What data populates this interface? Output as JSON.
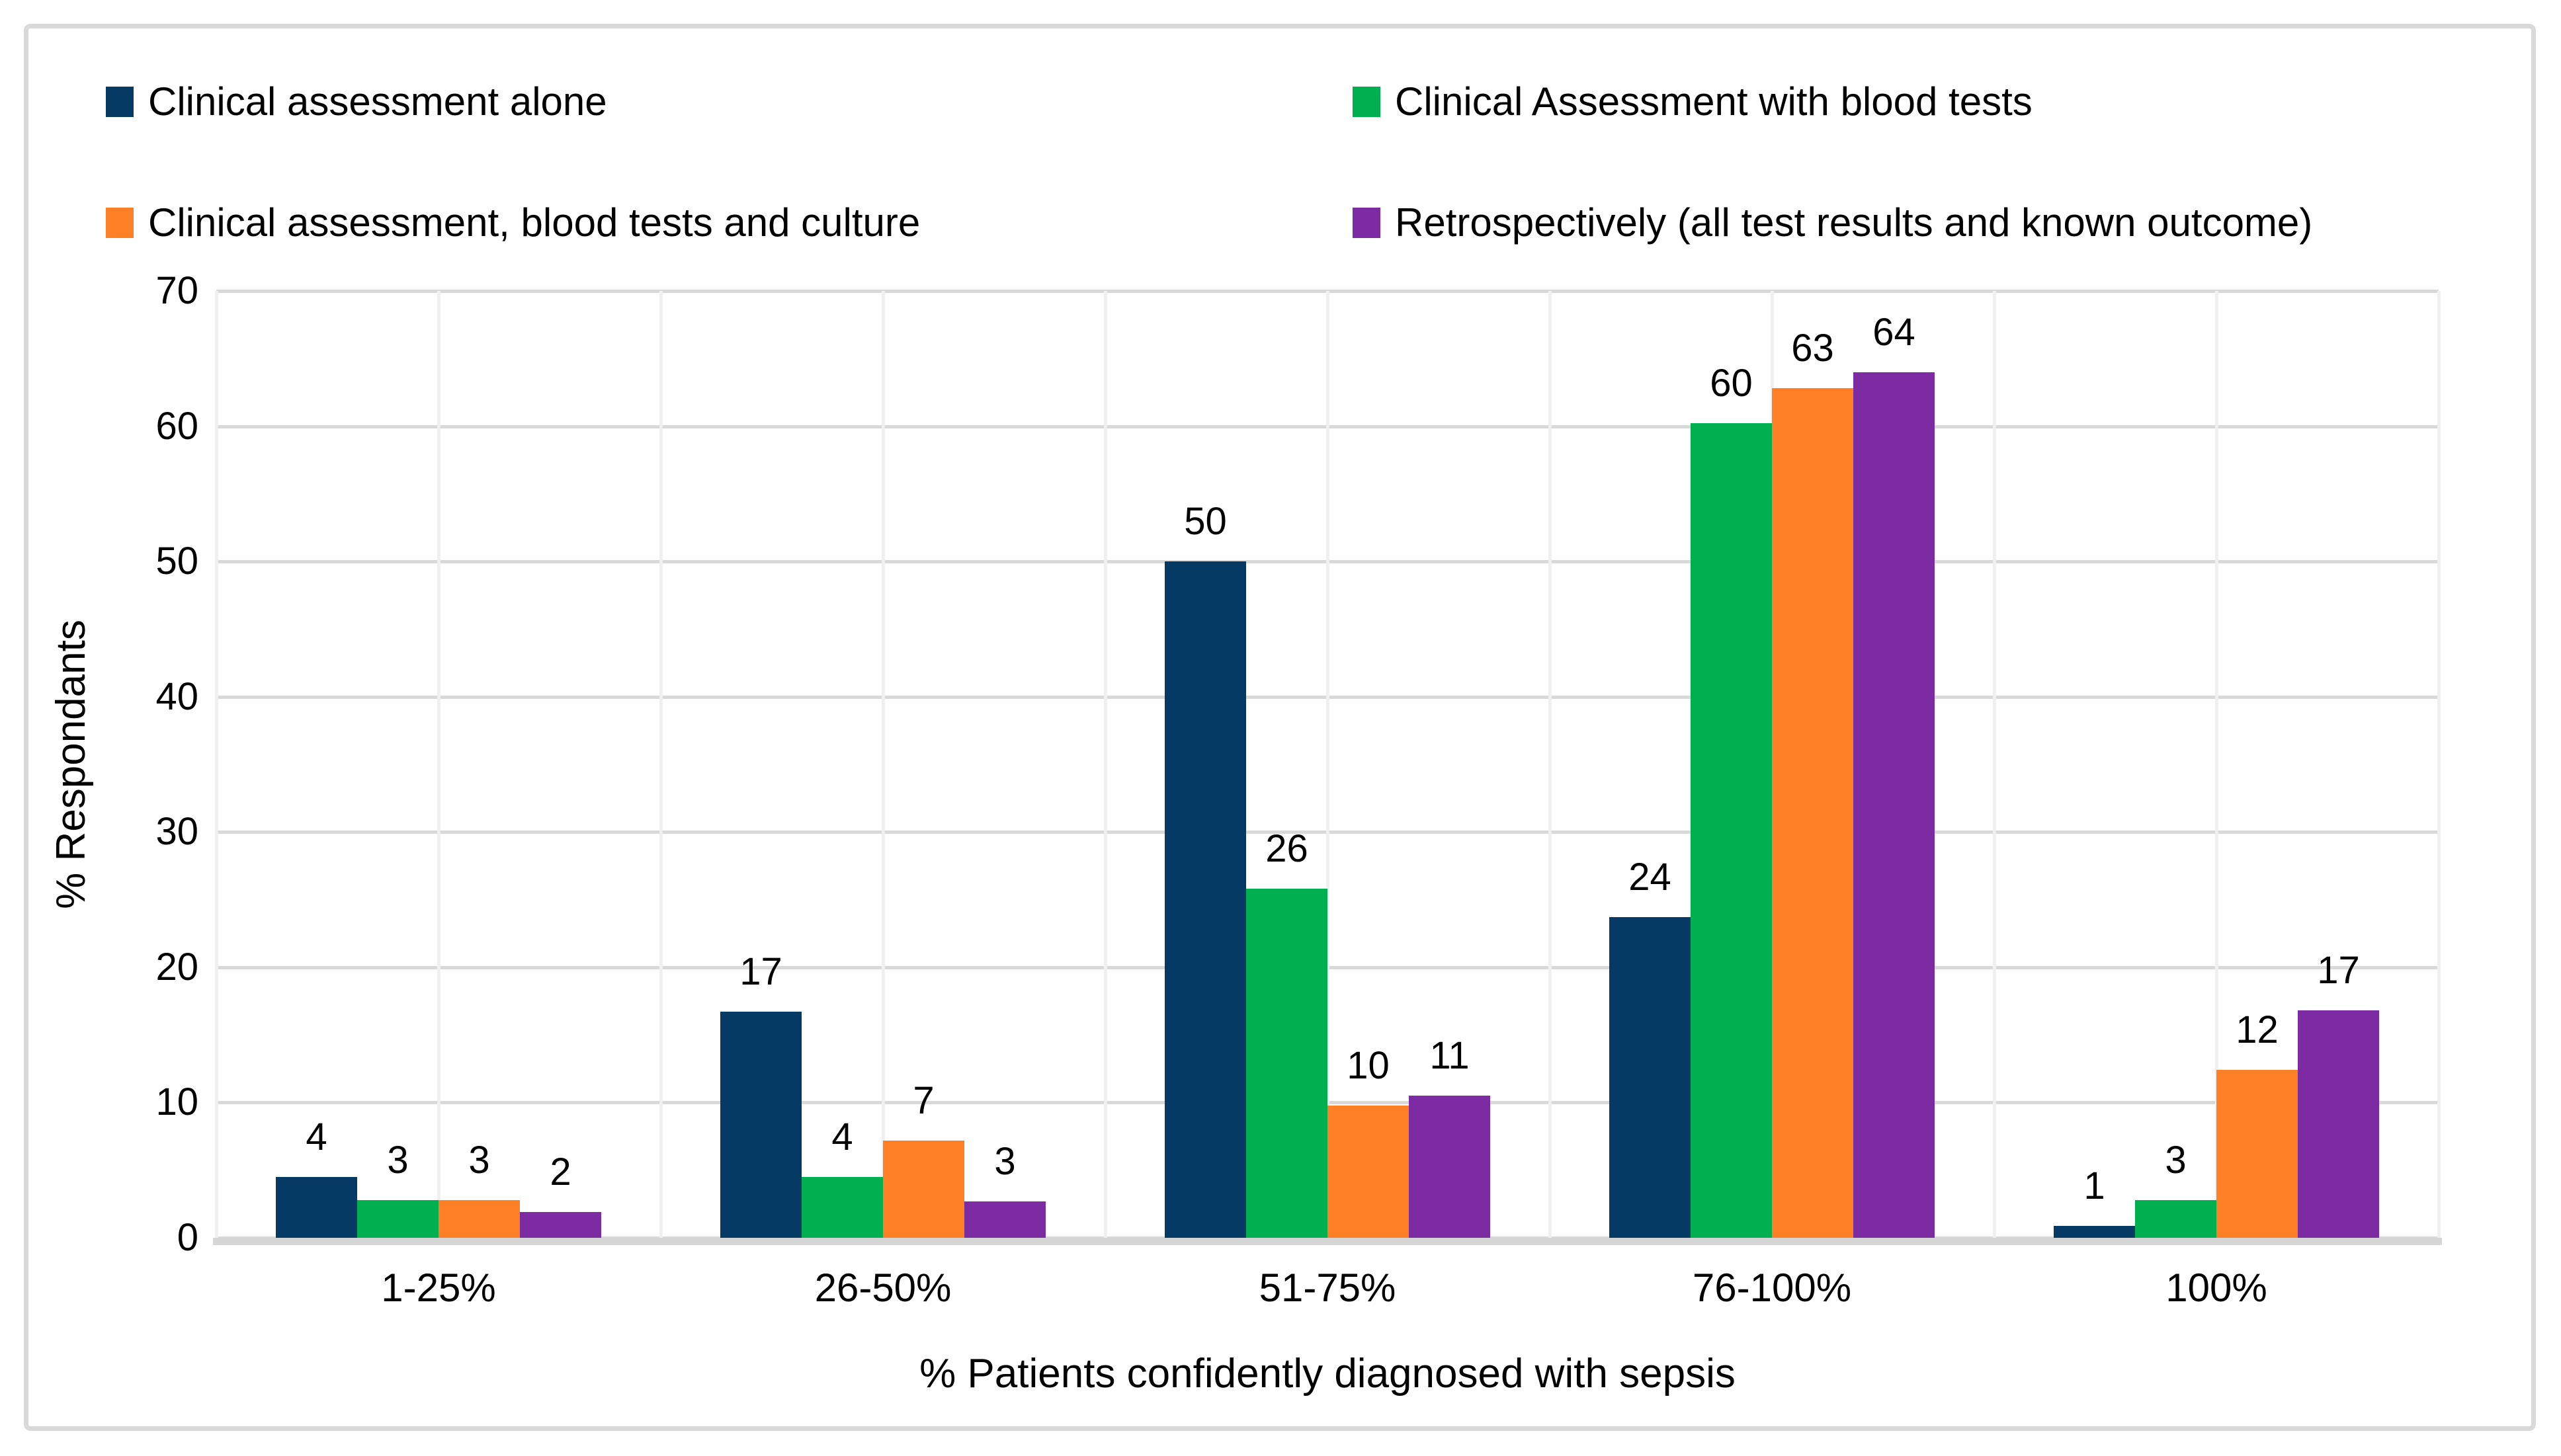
{
  "figure": {
    "background": "#FFFFFF",
    "border_color": "#D9D9D9",
    "gridline_color_horizontal": "#D9D9D9",
    "gridline_color_vertical": "#F0F0F0",
    "axis_line_color": "#D6D6D6"
  },
  "chart_data": {
    "type": "bar",
    "categories": [
      "1-25%",
      "26-50%",
      "51-75%",
      "76-100%",
      "100%"
    ],
    "series": [
      {
        "name": "Clinical assessment alone",
        "color": "#043A63",
        "values": [
          4,
          17,
          50,
          24,
          1
        ],
        "heights_pct": [
          4.5,
          16.7,
          50.0,
          23.7,
          0.9
        ]
      },
      {
        "name": "Clinical Assessment with blood tests",
        "color": "#00AF50",
        "values": [
          3,
          4,
          26,
          60,
          3
        ],
        "heights_pct": [
          2.8,
          4.5,
          25.8,
          60.2,
          2.8
        ]
      },
      {
        "name": "Clinical assessment, blood tests and culture",
        "color": "#FF7F27",
        "values": [
          3,
          7,
          10,
          63,
          12
        ],
        "heights_pct": [
          2.8,
          7.2,
          9.8,
          62.8,
          12.4
        ]
      },
      {
        "name": "Retrospectively (all test results and known outcome)",
        "color": "#7C2BA3",
        "values": [
          2,
          3,
          11,
          64,
          17
        ],
        "heights_pct": [
          1.9,
          2.7,
          10.5,
          64.0,
          16.8
        ]
      }
    ],
    "title": "",
    "xlabel": "% Patients confidently diagnosed with sepsis",
    "ylabel": "% Respondants",
    "ylim": [
      0,
      70
    ],
    "yticks": [
      0,
      10,
      20,
      30,
      40,
      50,
      60,
      70
    ],
    "grid": true,
    "legend_position": "top"
  }
}
